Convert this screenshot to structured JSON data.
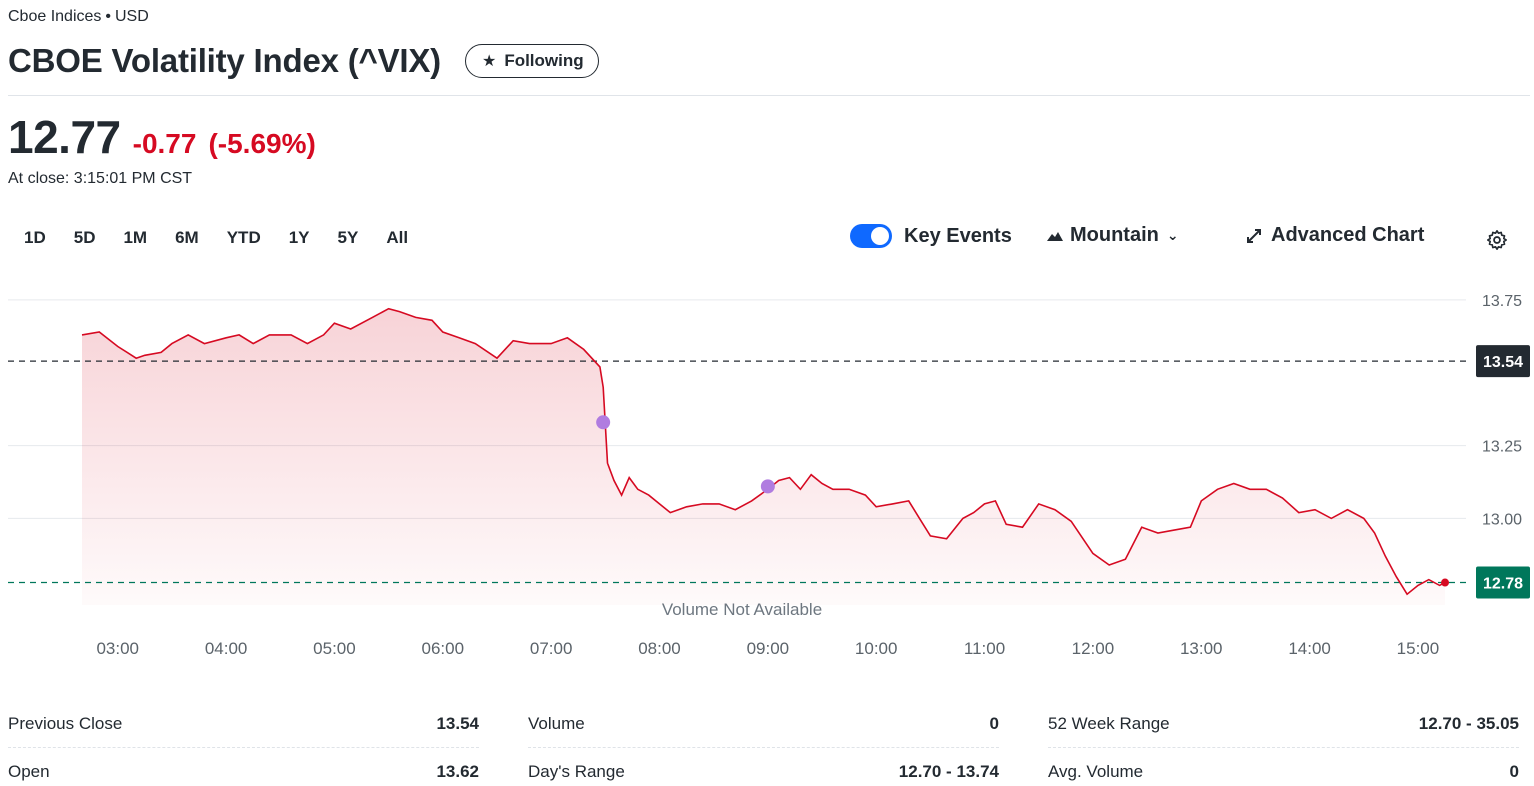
{
  "header": {
    "exchange": "Cboe Indices",
    "currency": "USD",
    "title": "CBOE Volatility Index (^VIX)",
    "follow_label": "Following"
  },
  "quote": {
    "price": "12.77",
    "change": "-0.77",
    "change_pct": "(-5.69%)",
    "close_time": "At close: 3:15:01 PM CST"
  },
  "ranges": [
    "1D",
    "5D",
    "1M",
    "6M",
    "YTD",
    "1Y",
    "5Y",
    "All"
  ],
  "toolbar": {
    "key_events_label": "Key Events",
    "chart_type_label": "Mountain",
    "advanced_chart_label": "Advanced Chart"
  },
  "chart_data": {
    "type": "area",
    "x_tick_labels": [
      "03:00",
      "04:00",
      "05:00",
      "06:00",
      "07:00",
      "08:00",
      "09:00",
      "10:00",
      "11:00",
      "12:00",
      "13:00",
      "14:00",
      "15:00"
    ],
    "y_tick_labels": [
      "13.75",
      "13.25",
      "13.00"
    ],
    "ylim": [
      12.72,
      13.76
    ],
    "previous_close_tag": "13.54",
    "last_price_tag": "12.78",
    "previous_close": 13.54,
    "last_price": 12.78,
    "volume_note": "Volume Not Available",
    "line_color": "#d60a22",
    "prev_close_color": "#232a31",
    "last_price_color": "#00775b",
    "event_marker_color": "#b07ce0",
    "key_events": [
      {
        "time": 7.48,
        "value": 13.33
      },
      {
        "time": 9.0,
        "value": 13.11
      }
    ],
    "series": [
      {
        "values": [
          [
            2.67,
            13.63
          ],
          [
            2.83,
            13.64
          ],
          [
            3.0,
            13.59
          ],
          [
            3.17,
            13.55
          ],
          [
            3.25,
            13.56
          ],
          [
            3.4,
            13.57
          ],
          [
            3.5,
            13.6
          ],
          [
            3.65,
            13.63
          ],
          [
            3.8,
            13.6
          ],
          [
            4.0,
            13.62
          ],
          [
            4.12,
            13.63
          ],
          [
            4.25,
            13.6
          ],
          [
            4.4,
            13.63
          ],
          [
            4.6,
            13.63
          ],
          [
            4.75,
            13.6
          ],
          [
            4.9,
            13.63
          ],
          [
            5.0,
            13.67
          ],
          [
            5.15,
            13.65
          ],
          [
            5.35,
            13.69
          ],
          [
            5.5,
            13.72
          ],
          [
            5.6,
            13.71
          ],
          [
            5.75,
            13.69
          ],
          [
            5.9,
            13.68
          ],
          [
            6.0,
            13.64
          ],
          [
            6.15,
            13.62
          ],
          [
            6.3,
            13.6
          ],
          [
            6.5,
            13.55
          ],
          [
            6.65,
            13.61
          ],
          [
            6.8,
            13.6
          ],
          [
            7.0,
            13.6
          ],
          [
            7.15,
            13.62
          ],
          [
            7.3,
            13.58
          ],
          [
            7.45,
            13.52
          ],
          [
            7.48,
            13.45
          ],
          [
            7.52,
            13.19
          ],
          [
            7.58,
            13.13
          ],
          [
            7.65,
            13.08
          ],
          [
            7.72,
            13.14
          ],
          [
            7.8,
            13.1
          ],
          [
            7.9,
            13.08
          ],
          [
            8.0,
            13.05
          ],
          [
            8.1,
            13.02
          ],
          [
            8.25,
            13.04
          ],
          [
            8.4,
            13.05
          ],
          [
            8.55,
            13.05
          ],
          [
            8.7,
            13.03
          ],
          [
            8.85,
            13.06
          ],
          [
            9.0,
            13.1
          ],
          [
            9.1,
            13.13
          ],
          [
            9.2,
            13.14
          ],
          [
            9.3,
            13.1
          ],
          [
            9.4,
            13.15
          ],
          [
            9.5,
            13.12
          ],
          [
            9.6,
            13.1
          ],
          [
            9.75,
            13.1
          ],
          [
            9.9,
            13.08
          ],
          [
            10.0,
            13.04
          ],
          [
            10.15,
            13.05
          ],
          [
            10.3,
            13.06
          ],
          [
            10.4,
            13.0
          ],
          [
            10.5,
            12.94
          ],
          [
            10.65,
            12.93
          ],
          [
            10.8,
            13.0
          ],
          [
            10.9,
            13.02
          ],
          [
            11.0,
            13.05
          ],
          [
            11.1,
            13.06
          ],
          [
            11.2,
            12.98
          ],
          [
            11.35,
            12.97
          ],
          [
            11.5,
            13.05
          ],
          [
            11.65,
            13.03
          ],
          [
            11.8,
            12.99
          ],
          [
            12.0,
            12.88
          ],
          [
            12.15,
            12.84
          ],
          [
            12.3,
            12.86
          ],
          [
            12.45,
            12.97
          ],
          [
            12.6,
            12.95
          ],
          [
            12.75,
            12.96
          ],
          [
            12.9,
            12.97
          ],
          [
            13.0,
            13.06
          ],
          [
            13.15,
            13.1
          ],
          [
            13.3,
            13.12
          ],
          [
            13.45,
            13.1
          ],
          [
            13.6,
            13.1
          ],
          [
            13.75,
            13.07
          ],
          [
            13.9,
            13.02
          ],
          [
            14.05,
            13.03
          ],
          [
            14.2,
            13.0
          ],
          [
            14.35,
            13.03
          ],
          [
            14.5,
            13.0
          ],
          [
            14.6,
            12.95
          ],
          [
            14.7,
            12.87
          ],
          [
            14.8,
            12.8
          ],
          [
            14.9,
            12.74
          ],
          [
            15.0,
            12.77
          ],
          [
            15.1,
            12.79
          ],
          [
            15.2,
            12.77
          ],
          [
            15.25,
            12.78
          ]
        ]
      }
    ]
  },
  "stats": {
    "col1": [
      {
        "label": "Previous Close",
        "value": "13.54"
      },
      {
        "label": "Open",
        "value": "13.62"
      }
    ],
    "col2": [
      {
        "label": "Volume",
        "value": "0"
      },
      {
        "label": "Day's Range",
        "value": "12.70 - 13.74"
      }
    ],
    "col3": [
      {
        "label": "52 Week Range",
        "value": "12.70 - 35.05"
      },
      {
        "label": "Avg. Volume",
        "value": "0"
      }
    ]
  }
}
